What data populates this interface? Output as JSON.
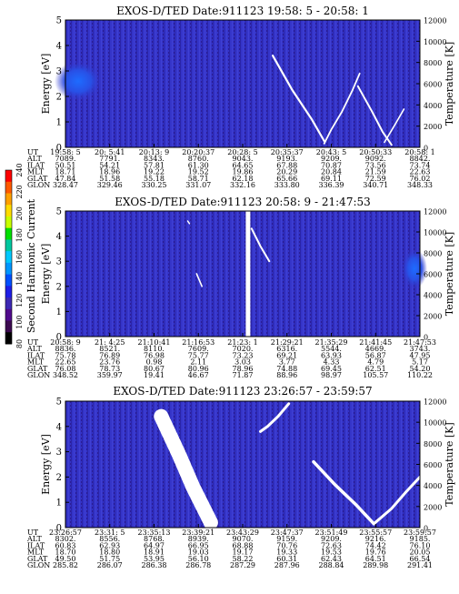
{
  "colorbar": {
    "label": "Second Harmonic Current",
    "ticks": [
      "240",
      "220",
      "200",
      "180",
      "160",
      "140",
      "120",
      "100",
      "80"
    ],
    "colors": [
      "#ff0000",
      "#ff5a00",
      "#ffa000",
      "#ffdc00",
      "#c8ff00",
      "#00e000",
      "#00c8a0",
      "#00c8ff",
      "#0096ff",
      "#0050ff",
      "#1e1ee6",
      "#3c28b4",
      "#500a8c",
      "#3c0a50",
      "#000000"
    ]
  },
  "chart_data": [
    {
      "type": "heatmap",
      "title": "EXOS-D/TED   Date:911123  19:58: 5 - 20:58: 1",
      "ylabel": "Energy [eV]",
      "y2label": "Temperature [K]",
      "ylim": [
        0,
        5
      ],
      "y2lim": [
        0,
        12000
      ],
      "yticks": [
        "0",
        "1",
        "2",
        "3",
        "4",
        "5"
      ],
      "y2ticks": [
        "0",
        "2000",
        "4000",
        "6000",
        "8000",
        "10000",
        "12000"
      ],
      "ephemeris_labels": [
        "UT",
        "ALT",
        "ILAT",
        "MLT",
        "GLAT",
        "GLON"
      ],
      "ephemeris": [
        [
          "19:58: 5",
          "20: 5:41",
          "20:13: 9",
          "20:20:37",
          "20:28: 5",
          "20:35:37",
          "20:43: 5",
          "20:50:33",
          "20:58: 1"
        ],
        [
          "7089.",
          "7791.",
          "8343.",
          "8760.",
          "9043.",
          "9193.",
          "9209.",
          "9092.",
          "8842."
        ],
        [
          "50.51",
          "54.21",
          "57.81",
          "61.30",
          "64.65",
          "67.88",
          "70.87",
          "73.56",
          "73.74"
        ],
        [
          "18.71",
          "18.96",
          "19.22",
          "19.52",
          "19.86",
          "20.29",
          "20.84",
          "21.59",
          "22.63"
        ],
        [
          "47.84",
          "51.58",
          "55.18",
          "58.71",
          "62.18",
          "65.66",
          "69.11",
          "72.59",
          "76.02"
        ],
        [
          "328.47",
          "329.46",
          "330.25",
          "331.07",
          "332.16",
          "333.80",
          "336.39",
          "340.71",
          "348.33"
        ]
      ]
    },
    {
      "type": "heatmap",
      "title": "EXOS-D/TED   Date:911123  20:58: 9 - 21:47:53",
      "ylabel": "Energy [eV]",
      "y2label": "Temperature [K]",
      "ylim": [
        0,
        5
      ],
      "y2lim": [
        0,
        12000
      ],
      "yticks": [
        "0",
        "1",
        "2",
        "3",
        "4",
        "5"
      ],
      "y2ticks": [
        "0",
        "2000",
        "4000",
        "6000",
        "8000",
        "10000",
        "12000"
      ],
      "ephemeris_labels": [
        "UT",
        "ALT",
        "ILAT",
        "MLT",
        "GLAT",
        "GLON"
      ],
      "ephemeris": [
        [
          "20:58: 9",
          "21: 4:25",
          "21:10:41",
          "21:16:53",
          "21:23: 1",
          "21:29:21",
          "21:35:29",
          "21:41:45",
          "21:47:53"
        ],
        [
          "8836.",
          "8521.",
          "8110.",
          "7609.",
          "7020.",
          "6316.",
          "5544.",
          "4669.",
          "3743."
        ],
        [
          "75.78",
          "76.89",
          "76.98",
          "75.77",
          "73.23",
          "69.21",
          "63.93",
          "56.87",
          "47.95"
        ],
        [
          "22.65",
          "23.76",
          "0.98",
          "2.11",
          "3.03",
          "3.77",
          "4.33",
          "4.79",
          "5.17"
        ],
        [
          "76.08",
          "78.73",
          "80.67",
          "80.96",
          "78.96",
          "74.88",
          "69.45",
          "62.51",
          "54.20"
        ],
        [
          "348.52",
          "359.97",
          "19.41",
          "46.67",
          "71.87",
          "88.96",
          "98.97",
          "105.57",
          "110.22"
        ]
      ]
    },
    {
      "type": "heatmap",
      "title": "EXOS-D/TED   Date:911123  23:26:57 - 23:59:57",
      "ylabel": "Energy [eV]",
      "y2label": "Temperature [K]",
      "ylim": [
        0,
        5
      ],
      "y2lim": [
        0,
        12000
      ],
      "yticks": [
        "0",
        "1",
        "2",
        "3",
        "4",
        "5"
      ],
      "y2ticks": [
        "0",
        "2000",
        "4000",
        "6000",
        "8000",
        "10000",
        "12000"
      ],
      "ephemeris_labels": [
        "UT",
        "ALT",
        "ILAT",
        "MLT",
        "GLAT",
        "GLON"
      ],
      "ephemeris": [
        [
          "23:26:57",
          "23:31: 5",
          "23:35:13",
          "23:39:21",
          "23:43:29",
          "23:47:37",
          "23:51:49",
          "23:55:57",
          "23:59:57"
        ],
        [
          "8302.",
          "8556.",
          "8768.",
          "8939.",
          "9070.",
          "9159.",
          "9209.",
          "9216.",
          "9185."
        ],
        [
          "60.83",
          "62.93",
          "64.97",
          "66.95",
          "68.88",
          "70.76",
          "72.63",
          "74.42",
          "76.10"
        ],
        [
          "18.70",
          "18.80",
          "18.91",
          "19.03",
          "19.17",
          "19.33",
          "19.53",
          "19.76",
          "20.05"
        ],
        [
          "49.50",
          "51.75",
          "53.95",
          "56.10",
          "58.22",
          "60.31",
          "62.43",
          "64.51",
          "66.54"
        ],
        [
          "285.82",
          "286.07",
          "286.38",
          "286.78",
          "287.29",
          "287.96",
          "288.84",
          "289.98",
          "291.41"
        ]
      ]
    }
  ]
}
